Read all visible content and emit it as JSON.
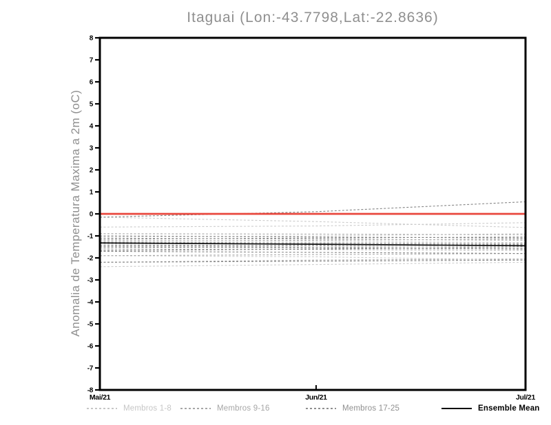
{
  "chart_data": {
    "type": "line",
    "title": "Itaguai (Lon:-43.7798,Lat:-22.8636)",
    "ylabel": "Anomalia de Temperatura Maxima a 2m (oC)",
    "xlabel": "",
    "ylim": [
      -8,
      8
    ],
    "ytick_step": 1,
    "grid": false,
    "frame_color": "#000000",
    "x_ticks": [
      {
        "label": "Mai/21",
        "frac": 0.0
      },
      {
        "label": "Jun/21",
        "frac": 0.508
      },
      {
        "label": "Jul/21",
        "frac": 1.0
      }
    ],
    "x_frac_points": [
      0.0,
      0.508,
      1.0
    ],
    "reference_line": {
      "name": "zero-anomaly-line",
      "color": "#e9463c",
      "values": [
        0,
        0,
        0
      ]
    },
    "ensemble_mean": {
      "name": "Ensemble Mean",
      "color": "#111111",
      "values": [
        -1.32,
        -1.38,
        -1.45
      ]
    },
    "member_groups": [
      {
        "label": "Membros 1-8",
        "color": "#cccccc",
        "members": [
          [
            -0.6,
            -0.55,
            -0.4
          ],
          [
            -0.15,
            -0.35,
            -0.62
          ],
          [
            -1.05,
            -1.0,
            -0.9
          ],
          [
            -1.2,
            -1.25,
            -1.3
          ],
          [
            -1.4,
            -1.45,
            -1.5
          ],
          [
            -1.55,
            -1.5,
            -1.45
          ],
          [
            -1.9,
            -1.95,
            -2.1
          ],
          [
            -2.4,
            -2.3,
            -2.2
          ]
        ]
      },
      {
        "label": "Membros 9-16",
        "color": "#a9a9a9",
        "members": [
          [
            -0.9,
            -0.92,
            -0.95
          ],
          [
            -1.1,
            -1.15,
            -1.2
          ],
          [
            -1.25,
            -1.2,
            -1.15
          ],
          [
            -1.35,
            -1.38,
            -1.4
          ],
          [
            -1.45,
            -1.5,
            -1.6
          ],
          [
            -1.6,
            -1.62,
            -1.65
          ],
          [
            -1.9,
            -1.85,
            -1.8
          ],
          [
            -2.2,
            -2.1,
            -2.05
          ]
        ]
      },
      {
        "label": "Membros 17-25",
        "color": "#858585",
        "members": [
          [
            -0.15,
            0.1,
            0.55
          ],
          [
            -1.0,
            -1.05,
            -1.1
          ],
          [
            -1.15,
            -1.1,
            -1.05
          ],
          [
            -1.3,
            -1.32,
            -1.35
          ],
          [
            -1.45,
            -1.42,
            -1.4
          ],
          [
            -1.5,
            -1.55,
            -1.58
          ],
          [
            -1.67,
            -1.6,
            -1.5
          ],
          [
            -1.7,
            -1.75,
            -1.8
          ],
          [
            -2.2,
            -2.15,
            -2.1
          ]
        ]
      }
    ],
    "legend": [
      {
        "label": "Membros 1-8",
        "color": "#c6c6c6",
        "line": "dashed",
        "bold": false
      },
      {
        "label": "Membros 9-16",
        "color": "#a6a6a6",
        "line": "dashed",
        "bold": false
      },
      {
        "label": "Membros 17-25",
        "color": "#8f8f8f",
        "line": "dashed",
        "bold": false
      },
      {
        "label": "Ensemble Mean",
        "color": "#000000",
        "line": "solid",
        "bold": true
      }
    ],
    "legend_position": "bottom"
  }
}
